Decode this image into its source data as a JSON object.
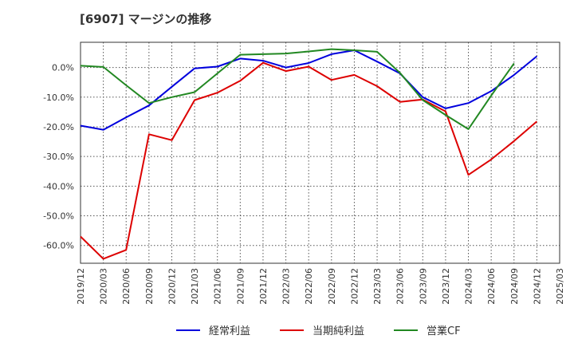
{
  "title": "[6907]  マージンの推移",
  "chart_data": {
    "type": "line",
    "x": [
      "2019/12",
      "2020/03",
      "2020/06",
      "2020/09",
      "2020/12",
      "2021/03",
      "2021/06",
      "2021/09",
      "2021/12",
      "2022/03",
      "2022/06",
      "2022/09",
      "2022/12",
      "2023/03",
      "2023/06",
      "2023/09",
      "2023/12",
      "2024/03",
      "2024/06",
      "2024/09",
      "2024/12",
      "2025/03"
    ],
    "xlabel": "",
    "ylabel": "",
    "ylim": [
      -66,
      8.5
    ],
    "yticks": [
      0,
      -10,
      -20,
      -30,
      -40,
      -50,
      -60
    ],
    "ytick_labels": [
      "0.0%",
      "-10.0%",
      "-20.0%",
      "-30.0%",
      "-40.0%",
      "-50.0%",
      "-60.0%"
    ],
    "grid": true,
    "legend_position": "bottom",
    "series": [
      {
        "name": "経常利益",
        "color": "#0000dd",
        "values": [
          -19.6,
          -21.0,
          -16.8,
          -12.8,
          -6.5,
          -0.3,
          0.3,
          3.0,
          2.3,
          0.0,
          1.5,
          4.5,
          5.8,
          2.0,
          -2.0,
          -10.0,
          -13.8,
          -12.0,
          -8.0,
          -2.5,
          3.8,
          null
        ]
      },
      {
        "name": "当期純利益",
        "color": "#dd0000",
        "values": [
          -57.0,
          -64.5,
          -61.5,
          -22.5,
          -24.5,
          -11.0,
          -8.5,
          -4.5,
          1.6,
          -1.2,
          0.3,
          -4.2,
          -2.5,
          -6.3,
          -11.6,
          -10.8,
          -14.8,
          -36.2,
          -31.0,
          -24.8,
          -18.2,
          null
        ]
      },
      {
        "name": "営業CF",
        "color": "#228822",
        "values": [
          0.6,
          0.2,
          -6.0,
          -12.0,
          -10.0,
          -8.3,
          -2.0,
          4.3,
          4.5,
          4.7,
          5.4,
          6.2,
          5.8,
          5.3,
          -1.8,
          -11.0,
          -16.0,
          -20.8,
          -9.5,
          1.4,
          null,
          null
        ]
      }
    ]
  }
}
